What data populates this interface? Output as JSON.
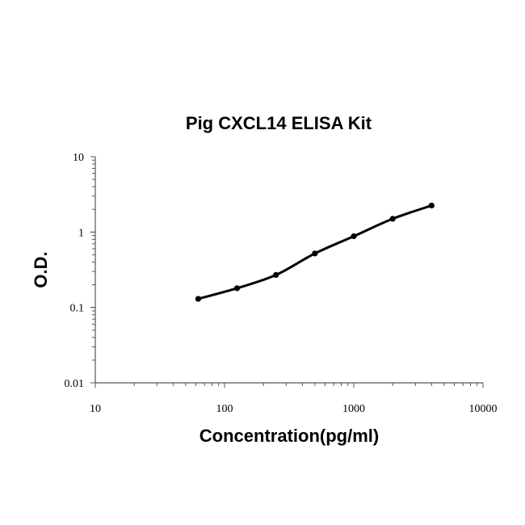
{
  "chart_data": {
    "type": "scatter",
    "title": "Pig CXCL14 ELISA Kit",
    "xlabel": "Concentration(pg/ml)",
    "ylabel": "O.D.",
    "xscale": "log",
    "yscale": "log",
    "xlim": [
      10,
      10000
    ],
    "ylim": [
      0.01,
      10
    ],
    "x_tick_labels": [
      "10",
      "100",
      "1000",
      "10000"
    ],
    "y_tick_labels": [
      "0.01",
      "0.1",
      "1",
      "10"
    ],
    "x_ticks": [
      10,
      100,
      1000,
      10000
    ],
    "y_ticks": [
      0.01,
      0.1,
      1,
      10
    ],
    "grid": false,
    "legend": "none",
    "series": [
      {
        "x": [
          62.5,
          125,
          250,
          500,
          1000,
          2000,
          4000
        ],
        "y": [
          0.13,
          0.18,
          0.27,
          0.52,
          0.88,
          1.5,
          2.25
        ]
      }
    ],
    "fit_curve": true,
    "colors": {
      "series": "#000000",
      "axis": "#555555"
    }
  }
}
